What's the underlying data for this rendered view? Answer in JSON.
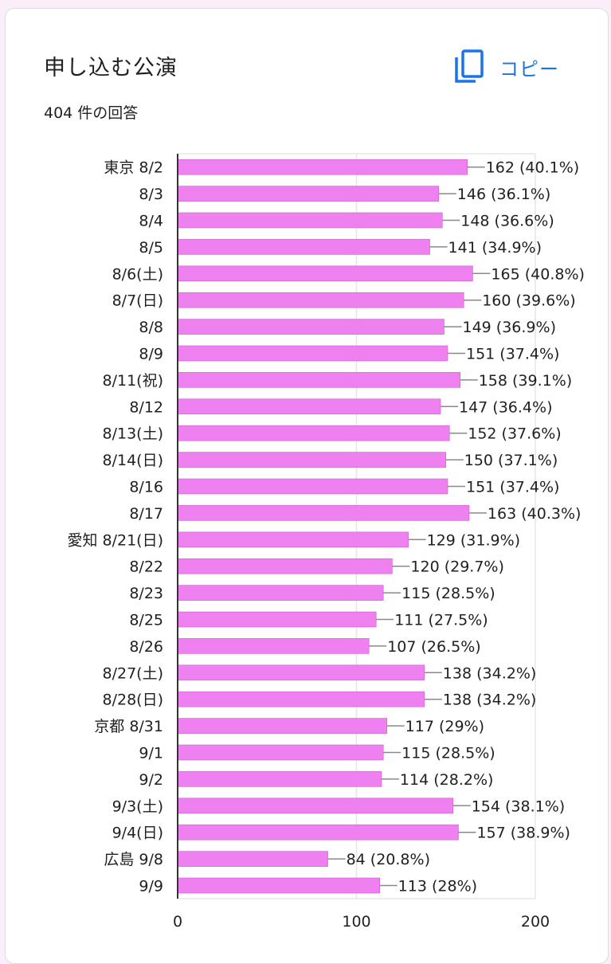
{
  "question": {
    "title": "申し込む公演",
    "response_count": "404 件の回答"
  },
  "copy_button": {
    "label": "コピー",
    "icon": "copy-icon"
  },
  "colors": {
    "bar": "#ef80ef",
    "accent": "#1a73e8"
  },
  "chart_data": {
    "type": "bar",
    "orientation": "horizontal",
    "categories": [
      "東京 8/2",
      "8/3",
      "8/4",
      "8/5",
      "8/6(土)",
      "8/7(日)",
      "8/8",
      "8/9",
      "8/11(祝)",
      "8/12",
      "8/13(土)",
      "8/14(日)",
      "8/16",
      "8/17",
      "愛知 8/21(日)",
      "8/22",
      "8/23",
      "8/25",
      "8/26",
      "8/27(土)",
      "8/28(日)",
      "京都 8/31",
      "9/1",
      "9/2",
      "9/3(土)",
      "9/4(日)",
      "広島 9/8",
      "9/9"
    ],
    "values": [
      162,
      146,
      148,
      141,
      165,
      160,
      149,
      151,
      158,
      147,
      152,
      150,
      151,
      163,
      129,
      120,
      115,
      111,
      107,
      138,
      138,
      117,
      115,
      114,
      154,
      157,
      84,
      113
    ],
    "labels": [
      "162 (40.1%)",
      "146 (36.1%)",
      "148 (36.6%)",
      "141 (34.9%)",
      "165 (40.8%)",
      "160 (39.6%)",
      "149 (36.9%)",
      "151 (37.4%)",
      "158 (39.1%)",
      "147 (36.4%)",
      "152 (37.6%)",
      "150 (37.1%)",
      "151 (37.4%)",
      "163 (40.3%)",
      "129 (31.9%)",
      "120 (29.7%)",
      "115 (28.5%)",
      "111 (27.5%)",
      "107 (26.5%)",
      "138 (34.2%)",
      "138 (34.2%)",
      "117 (29%)",
      "115 (28.5%)",
      "114 (28.2%)",
      "154 (38.1%)",
      "157 (38.9%)",
      "84 (20.8%)",
      "113 (28%)"
    ],
    "xticks": [
      0,
      100,
      200
    ],
    "xlim": [
      0,
      200
    ],
    "grid": true,
    "legend": "none"
  }
}
